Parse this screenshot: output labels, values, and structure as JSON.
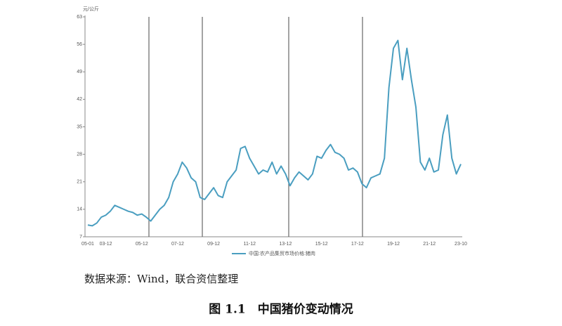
{
  "chart_data": {
    "type": "line",
    "y_unit": "元/公斤",
    "source": "数据来源：Wind，联合资信整理",
    "caption": "图 1.1　中国猪价变动情况",
    "categories": [
      "05-01",
      null,
      null,
      null,
      "03-12",
      null,
      null,
      null,
      null,
      null,
      null,
      null,
      "05-12",
      null,
      null,
      null,
      null,
      null,
      null,
      null,
      "07-12",
      null,
      null,
      null,
      null,
      null,
      null,
      null,
      "09-12",
      null,
      null,
      null,
      null,
      null,
      null,
      null,
      "11-12",
      null,
      null,
      null,
      null,
      null,
      null,
      null,
      "13-12",
      null,
      null,
      null,
      null,
      null,
      null,
      null,
      "15-12",
      null,
      null,
      null,
      null,
      null,
      null,
      null,
      "17-12",
      null,
      null,
      null,
      null,
      null,
      null,
      null,
      "19-12",
      null,
      null,
      null,
      null,
      null,
      null,
      null,
      "21-12",
      null,
      null,
      null,
      null,
      null,
      null,
      "23-10"
    ],
    "series": [
      {
        "name": "中国:农产品集贸市场价格:猪肉",
        "color": "#4a9ec0",
        "values": [
          10,
          9.8,
          10.5,
          12,
          12.5,
          13.5,
          15,
          14.5,
          14,
          13.5,
          13.2,
          12.5,
          12.8,
          12,
          11,
          12.5,
          14,
          15,
          17,
          21,
          23,
          26,
          24.5,
          22,
          21,
          17,
          16.5,
          18,
          19.5,
          17.5,
          17,
          21,
          22.5,
          24,
          29.5,
          30,
          27,
          25,
          23,
          24,
          23.5,
          26,
          23,
          25,
          23,
          20,
          22,
          23.5,
          22.5,
          21.5,
          23,
          27.5,
          27,
          29,
          30.5,
          28.5,
          28,
          27,
          24,
          24.5,
          23.5,
          20.5,
          19.5,
          22,
          22.5,
          23,
          27,
          45,
          55,
          57,
          47,
          55,
          47,
          40,
          26,
          24,
          27,
          23.5,
          24,
          33,
          38,
          27,
          23,
          25.5
        ]
      }
    ],
    "ylim": [
      7,
      63
    ],
    "yticks": [
      7,
      14,
      21,
      28,
      35,
      42,
      49,
      56,
      63
    ],
    "grid": false
  }
}
